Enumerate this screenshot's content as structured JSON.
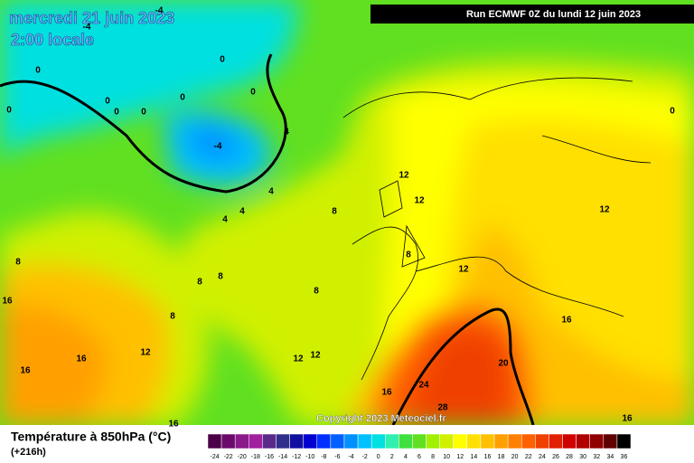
{
  "header": {
    "date": "mercredi 21 juin 2023",
    "time": "2:00 locale",
    "run": "Run ECMWF 0Z du lundi 12 juin 2023",
    "copyright": "Copyright 2023 Meteociel.fr"
  },
  "contour_labels": [
    -4,
    -4,
    0,
    0,
    0,
    0,
    0,
    0,
    0,
    0,
    0,
    -4,
    4,
    4,
    4,
    4,
    8,
    8,
    8,
    8,
    8,
    8,
    8,
    12,
    12,
    12,
    12,
    12,
    12,
    12,
    16,
    16,
    16,
    16,
    16,
    16,
    16,
    20,
    24,
    28
  ],
  "legend": {
    "title": "Température à 850hPa (°C)",
    "subtitle": "(+216h)",
    "ticks": [
      -24,
      -22,
      -20,
      -18,
      -16,
      -14,
      -12,
      -10,
      -8,
      -6,
      -4,
      -2,
      0,
      2,
      4,
      6,
      8,
      10,
      12,
      14,
      16,
      18,
      20,
      22,
      24,
      26,
      28,
      30,
      32,
      34,
      36
    ],
    "colors": [
      "#4b0048",
      "#6a0a6a",
      "#8a1a8a",
      "#a020a0",
      "#5a2a8a",
      "#30308c",
      "#1010a0",
      "#0000d0",
      "#0030ff",
      "#0060ff",
      "#0090ff",
      "#00c0ff",
      "#00e0e0",
      "#30f0b0",
      "#40e040",
      "#60e020",
      "#a0f000",
      "#d0f000",
      "#ffff00",
      "#ffe000",
      "#ffc000",
      "#ffa000",
      "#ff8000",
      "#ff6000",
      "#f04000",
      "#e02000",
      "#d00000",
      "#b00000",
      "#900000",
      "#600000",
      "#000000"
    ]
  }
}
